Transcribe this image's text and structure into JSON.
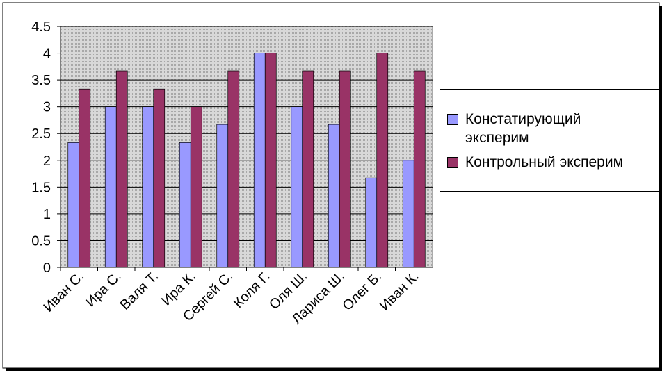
{
  "chart_data": {
    "type": "bar",
    "categories": [
      "Иван С.",
      "Ира С.",
      "Валя Т.",
      "Ира К.",
      "Сергей С.",
      "Коля Г.",
      "Оля Ш.",
      "Лариса Ш.",
      "Олег Б.",
      "Иван К."
    ],
    "series": [
      {
        "name": "Констатирующий эксперим",
        "color": "#9999ff",
        "values": [
          2.33,
          3,
          3,
          2.33,
          2.67,
          4,
          3,
          2.67,
          1.67,
          2
        ]
      },
      {
        "name": "Контрольный эксперим",
        "color": "#993366",
        "values": [
          3.33,
          3.67,
          3.33,
          3,
          3.67,
          4,
          3.67,
          3.67,
          4,
          3.67
        ]
      }
    ],
    "ylim": [
      0,
      4.5
    ],
    "yticks": [
      0,
      0.5,
      1,
      1.5,
      2,
      2.5,
      3,
      3.5,
      4,
      4.5
    ],
    "grid": true,
    "legend": "right"
  }
}
